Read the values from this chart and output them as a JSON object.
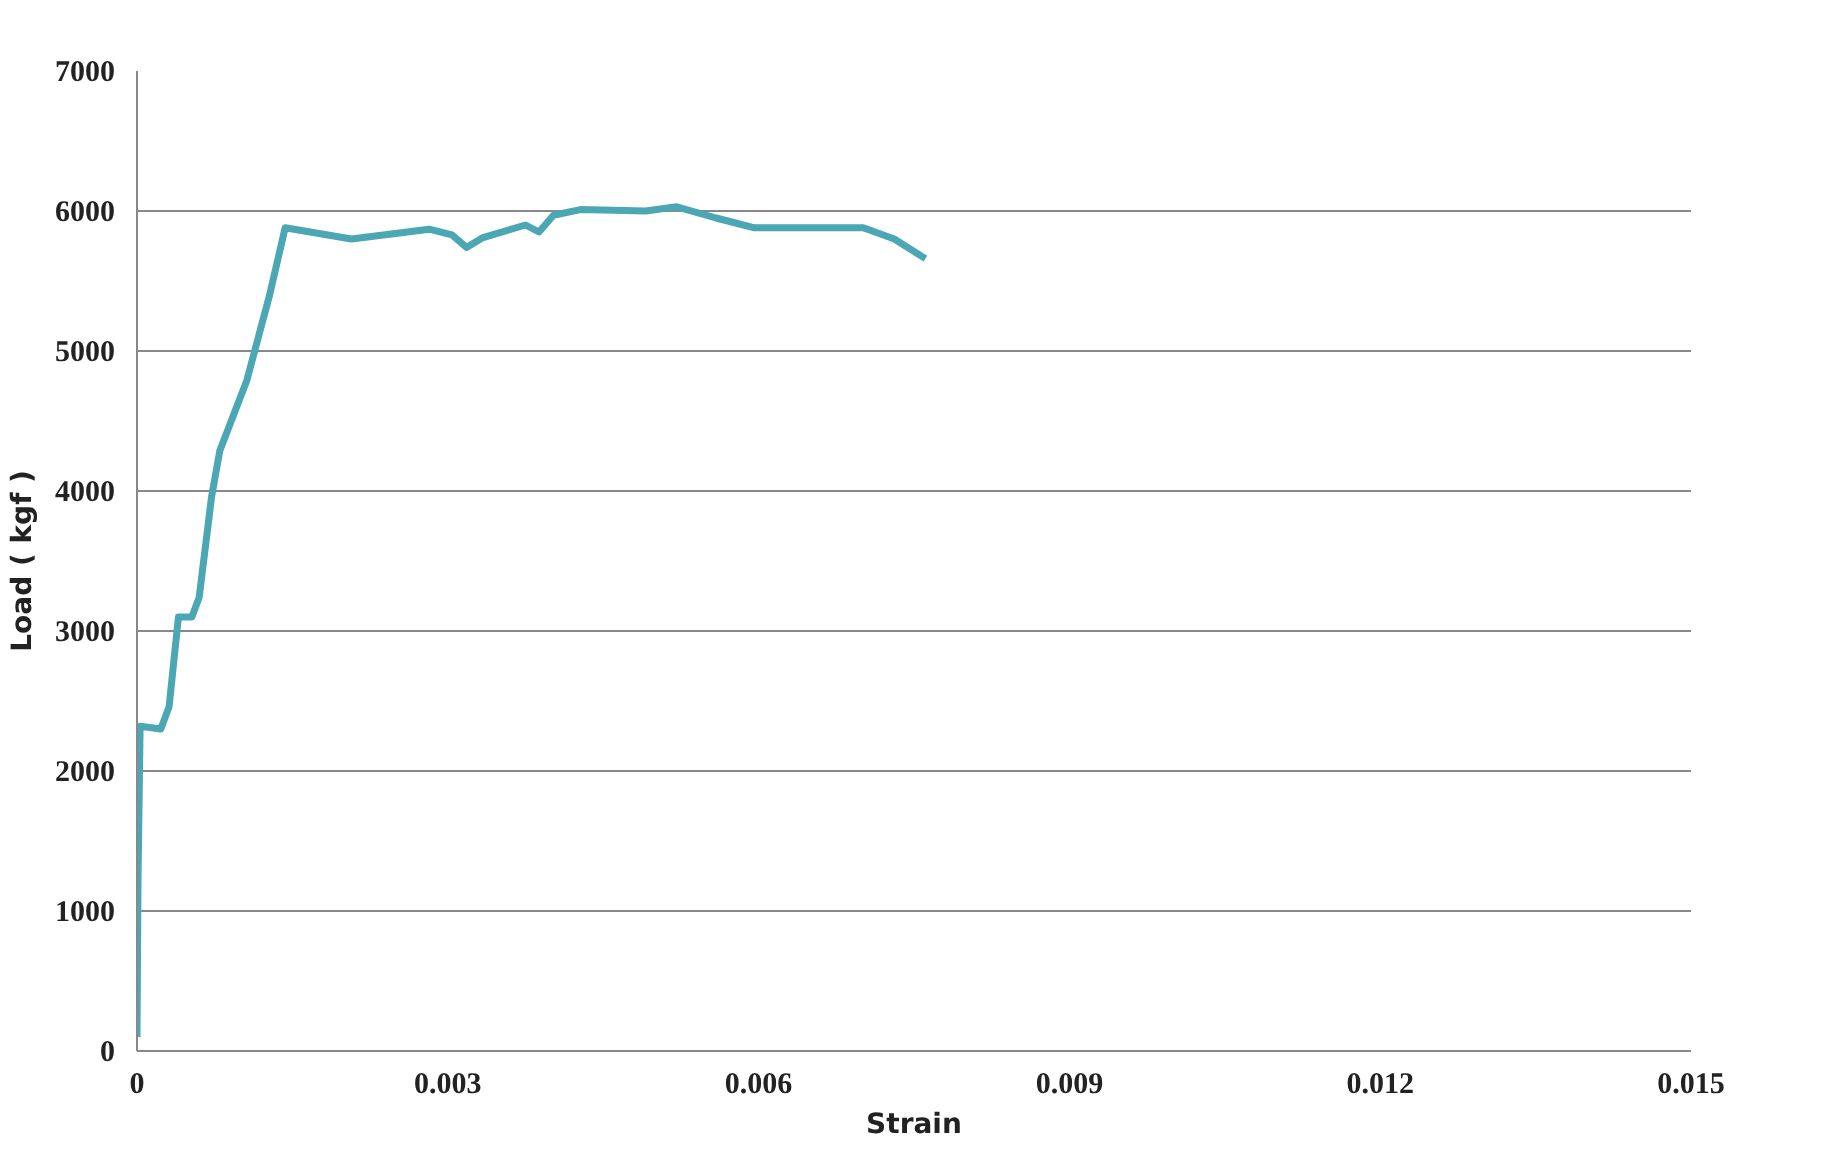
{
  "chart_data": {
    "type": "line",
    "xlabel": "Strain",
    "ylabel": "Load ( kgf )",
    "xlim": [
      0,
      0.015
    ],
    "xticks": [
      0,
      0.003,
      0.006,
      0.009,
      0.012,
      0.015
    ],
    "ylim": [
      0,
      7000
    ],
    "yticks": [
      0,
      1000,
      2000,
      3000,
      4000,
      5000,
      6000,
      7000
    ],
    "grid": "y",
    "marker": "none",
    "line_style": "solid",
    "series": [
      {
        "color": "#4aa7b3",
        "x": [
          0,
          1e-05,
          3e-05,
          0.00023,
          0.00031,
          0.0004,
          0.00053,
          0.0006,
          0.00072,
          0.0008,
          0.00106,
          0.00128,
          0.00143,
          0.00207,
          0.00282,
          0.00304,
          0.00318,
          0.00334,
          0.00375,
          0.00388,
          0.00402,
          0.00428,
          0.00491,
          0.00521,
          0.00559,
          0.00596,
          0.00701,
          0.00731,
          0.00761
        ],
        "values": [
          100,
          1240,
          2320,
          2300,
          2460,
          3100,
          3100,
          3240,
          3960,
          4290,
          4790,
          5400,
          5880,
          5800,
          5870,
          5830,
          5740,
          5810,
          5900,
          5850,
          5970,
          6010,
          6000,
          6030,
          5950,
          5880,
          5880,
          5800,
          5660
        ]
      }
    ]
  }
}
